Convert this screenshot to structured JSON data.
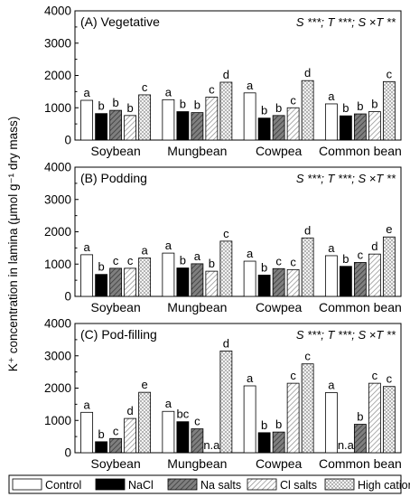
{
  "ylabel": "K⁺ concentration in lamina (μmol g⁻¹ dry mass)",
  "legend": [
    {
      "name": "Control",
      "pattern": "control"
    },
    {
      "name": "NaCl",
      "pattern": "nacl"
    },
    {
      "name": "Na salts",
      "pattern": "na"
    },
    {
      "name": "Cl salts",
      "pattern": "cl"
    },
    {
      "name": "High cation",
      "pattern": "hc"
    }
  ],
  "chart_data": [
    {
      "type": "bar",
      "title": "(A) Vegetative",
      "stats": "S ***; T ***; S ×T **",
      "ylim": [
        0,
        4000
      ],
      "yticks": [
        0,
        1000,
        2000,
        3000,
        4000
      ],
      "categories": [
        "Soybean",
        "Mungbean",
        "Cowpea",
        "Common bean"
      ],
      "series": [
        {
          "name": "Control",
          "values": [
            1230,
            1250,
            1460,
            1120
          ],
          "letters": [
            "a",
            "a",
            "a",
            "a"
          ]
        },
        {
          "name": "NaCl",
          "values": [
            820,
            880,
            680,
            750
          ],
          "letters": [
            "b",
            "b",
            "b",
            "b"
          ]
        },
        {
          "name": "Na salts",
          "values": [
            920,
            850,
            760,
            810
          ],
          "letters": [
            "b",
            "b",
            "b",
            "b"
          ]
        },
        {
          "name": "Cl salts",
          "values": [
            760,
            1330,
            1000,
            880
          ],
          "letters": [
            "b",
            "c",
            "c",
            "b"
          ]
        },
        {
          "name": "High cation",
          "values": [
            1400,
            1790,
            1840,
            1810
          ],
          "letters": [
            "c",
            "d",
            "d",
            "c"
          ]
        }
      ]
    },
    {
      "type": "bar",
      "title": "(B) Podding",
      "stats": "S ***; T ***; S ×T **",
      "ylim": [
        0,
        4000
      ],
      "yticks": [
        0,
        1000,
        2000,
        3000,
        4000
      ],
      "categories": [
        "Soybean",
        "Mungbean",
        "Cowpea",
        "Common bean"
      ],
      "series": [
        {
          "name": "Control",
          "values": [
            1290,
            1340,
            1090,
            1260
          ],
          "letters": [
            "a",
            "a",
            "a",
            "a"
          ]
        },
        {
          "name": "NaCl",
          "values": [
            680,
            880,
            660,
            930
          ],
          "letters": [
            "b",
            "b",
            "b",
            "b"
          ]
        },
        {
          "name": "Na salts",
          "values": [
            870,
            1010,
            860,
            1050
          ],
          "letters": [
            "c",
            "a",
            "c",
            "c"
          ]
        },
        {
          "name": "Cl salts",
          "values": [
            870,
            780,
            830,
            1310
          ],
          "letters": [
            "c",
            "b",
            "c",
            "d"
          ]
        },
        {
          "name": "High cation",
          "values": [
            1190,
            1710,
            1810,
            1840
          ],
          "letters": [
            "a",
            "c",
            "d",
            "e"
          ]
        }
      ]
    },
    {
      "type": "bar",
      "title": "(C) Pod-filling",
      "stats": "S ***; T ***; S ×T **",
      "ylim": [
        0,
        4000
      ],
      "yticks": [
        0,
        1000,
        2000,
        3000,
        4000
      ],
      "categories": [
        "Soybean",
        "Mungbean",
        "Cowpea",
        "Common bean"
      ],
      "series": [
        {
          "name": "Control",
          "values": [
            1250,
            1280,
            2070,
            1860
          ],
          "letters": [
            "a",
            "a",
            "a",
            "a"
          ]
        },
        {
          "name": "NaCl",
          "values": [
            340,
            960,
            620,
            0
          ],
          "letters": [
            "b",
            "bc",
            "b",
            "n.a"
          ]
        },
        {
          "name": "Na salts",
          "values": [
            440,
            740,
            640,
            880
          ],
          "letters": [
            "c",
            "c",
            "b",
            "b"
          ]
        },
        {
          "name": "Cl salts",
          "values": [
            1060,
            0,
            2150,
            2150
          ],
          "letters": [
            "d",
            "n.a",
            "c",
            "c"
          ]
        },
        {
          "name": "High cation",
          "values": [
            1870,
            3150,
            2750,
            2050
          ],
          "letters": [
            "e",
            "d",
            "c",
            "c"
          ]
        }
      ]
    }
  ]
}
